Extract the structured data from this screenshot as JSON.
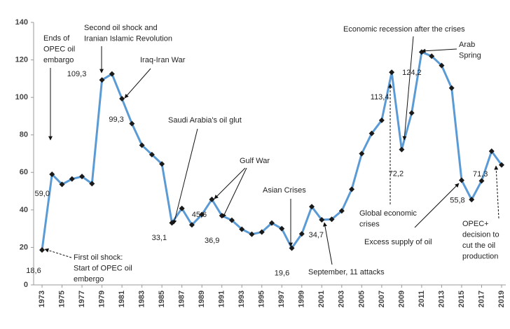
{
  "chart_data": {
    "type": "line",
    "x": [
      1973,
      1974,
      1975,
      1976,
      1977,
      1978,
      1979,
      1980,
      1981,
      1982,
      1983,
      1984,
      1985,
      1986,
      1987,
      1988,
      1989,
      1990,
      1991,
      1992,
      1993,
      1994,
      1995,
      1996,
      1997,
      1998,
      1999,
      2000,
      2001,
      2002,
      2003,
      2004,
      2005,
      2006,
      2007,
      2008,
      2009,
      2010,
      2011,
      2012,
      2013,
      2014,
      2015,
      2016,
      2017,
      2018,
      2019
    ],
    "series": [
      {
        "color": "#5b9bd5",
        "values": [
          18.6,
          59.0,
          53.6,
          56.5,
          57.8,
          54.0,
          109.3,
          112.5,
          99.3,
          86,
          74.5,
          69.5,
          64.5,
          33.1,
          40.8,
          32,
          37.5,
          45.6,
          36.9,
          34.5,
          29.7,
          27,
          28.2,
          33,
          30,
          19.6,
          27.2,
          41.7,
          34.7,
          35,
          39.5,
          51,
          70,
          80.8,
          87.8,
          113.4,
          72.2,
          91.7,
          124.2,
          122,
          117,
          105,
          55.8,
          45.5,
          55.5,
          71.3,
          64
        ],
        "value_labels": [
          "18,6",
          "59,0",
          null,
          null,
          null,
          null,
          "109,3",
          null,
          "99,3",
          null,
          null,
          null,
          null,
          "33,1",
          null,
          null,
          null,
          "45,6",
          "36,9",
          null,
          null,
          null,
          null,
          null,
          null,
          "19,6",
          null,
          null,
          "34,7",
          null,
          null,
          null,
          null,
          null,
          null,
          "113,4",
          "72,2",
          null,
          "124,2",
          null,
          null,
          null,
          "55,8",
          null,
          null,
          "71,3",
          null
        ]
      }
    ],
    "xlim": [
      1973,
      2019
    ],
    "xticks": [
      1973,
      1975,
      1977,
      1979,
      1981,
      1983,
      1985,
      1987,
      1989,
      1991,
      1993,
      1995,
      1997,
      1999,
      2001,
      2003,
      2005,
      2007,
      2009,
      2011,
      2013,
      2015,
      2017,
      2019
    ],
    "ylim": [
      0,
      140
    ],
    "yticks": [
      0,
      20,
      40,
      60,
      80,
      100,
      120,
      140
    ],
    "annotations": [
      [
        "Ends of",
        "OPEC oil",
        "embargo"
      ],
      [
        "Second oil shock and",
        "Iranian Islamic Revolution"
      ],
      [
        "Iraq-Iran War"
      ],
      [
        "Saudi Arabia's oil glut"
      ],
      [
        "Gulf War"
      ],
      [
        "Asian Crises"
      ],
      [
        "September, 11 attacks"
      ],
      [
        "Economic recession after the crises"
      ],
      [
        "Arab",
        "Spring"
      ],
      [
        "Global economic",
        "crises"
      ],
      [
        "Excess supply of oil"
      ],
      [
        "OPEC+",
        "decision to",
        "cut the oil",
        "production"
      ],
      [
        "First oil shock:",
        "Start of OPEC oil",
        "embergo"
      ]
    ]
  }
}
